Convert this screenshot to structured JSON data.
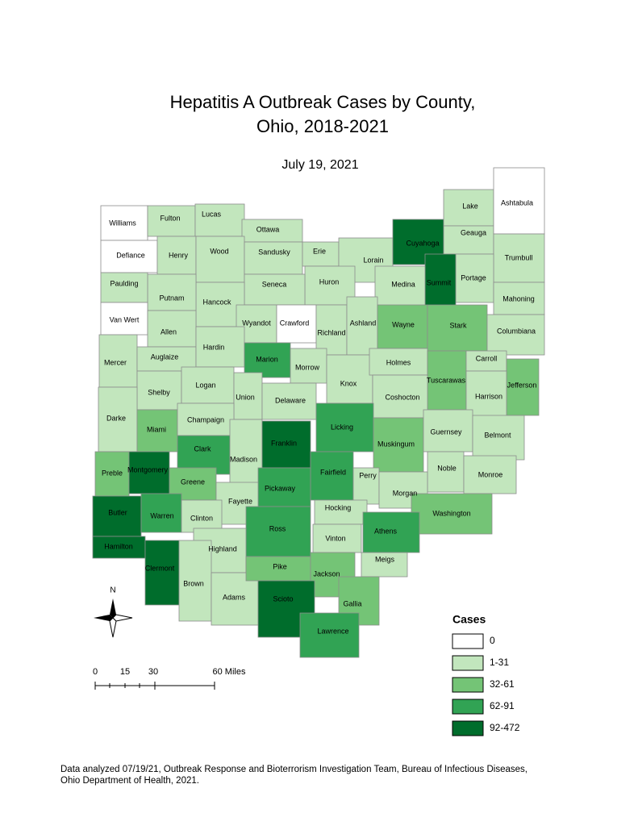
{
  "title": [
    "Hepatitis A Outbreak Cases by County,",
    "Ohio, 2018-2021"
  ],
  "subtitle": "July 19, 2021",
  "counties": [
    {
      "name": "Williams",
      "cases": "0"
    },
    {
      "name": "Fulton",
      "cases": "1-31"
    },
    {
      "name": "Lucas",
      "cases": "1-31"
    },
    {
      "name": "Ottawa",
      "cases": "1-31"
    },
    {
      "name": "Defiance",
      "cases": "0"
    },
    {
      "name": "Henry",
      "cases": "1-31"
    },
    {
      "name": "Wood",
      "cases": "1-31"
    },
    {
      "name": "Sandusky",
      "cases": "1-31"
    },
    {
      "name": "Erie",
      "cases": "1-31"
    },
    {
      "name": "Lorain",
      "cases": "1-31"
    },
    {
      "name": "Cuyahoga",
      "cases": "92-472"
    },
    {
      "name": "Lake",
      "cases": "1-31"
    },
    {
      "name": "Geauga",
      "cases": "1-31"
    },
    {
      "name": "Ashtabula",
      "cases": "0"
    },
    {
      "name": "Trumbull",
      "cases": "1-31"
    },
    {
      "name": "Portage",
      "cases": "1-31"
    },
    {
      "name": "Summit",
      "cases": "92-472"
    },
    {
      "name": "Medina",
      "cases": "1-31"
    },
    {
      "name": "Huron",
      "cases": "1-31"
    },
    {
      "name": "Seneca",
      "cases": "1-31"
    },
    {
      "name": "Hancock",
      "cases": "1-31"
    },
    {
      "name": "Putnam",
      "cases": "1-31"
    },
    {
      "name": "Paulding",
      "cases": "1-31"
    },
    {
      "name": "Van Wert",
      "cases": "0"
    },
    {
      "name": "Allen",
      "cases": "1-31"
    },
    {
      "name": "Wyandot",
      "cases": "1-31"
    },
    {
      "name": "Crawford",
      "cases": "0"
    },
    {
      "name": "Richland",
      "cases": "1-31"
    },
    {
      "name": "Ashland",
      "cases": "1-31"
    },
    {
      "name": "Wayne",
      "cases": "32-61"
    },
    {
      "name": "Stark",
      "cases": "32-61"
    },
    {
      "name": "Mahoning",
      "cases": "1-31"
    },
    {
      "name": "Columbiana",
      "cases": "1-31"
    },
    {
      "name": "Mercer",
      "cases": "1-31"
    },
    {
      "name": "Auglaize",
      "cases": "1-31"
    },
    {
      "name": "Hardin",
      "cases": "1-31"
    },
    {
      "name": "Marion",
      "cases": "62-91"
    },
    {
      "name": "Morrow",
      "cases": "1-31"
    },
    {
      "name": "Knox",
      "cases": "1-31"
    },
    {
      "name": "Holmes",
      "cases": "1-31"
    },
    {
      "name": "Tuscarawas",
      "cases": "32-61"
    },
    {
      "name": "Carroll",
      "cases": "1-31"
    },
    {
      "name": "Jefferson",
      "cases": "32-61"
    },
    {
      "name": "Harrison",
      "cases": "1-31"
    },
    {
      "name": "Coshocton",
      "cases": "1-31"
    },
    {
      "name": "Shelby",
      "cases": "1-31"
    },
    {
      "name": "Logan",
      "cases": "1-31"
    },
    {
      "name": "Union",
      "cases": "1-31"
    },
    {
      "name": "Delaware",
      "cases": "1-31"
    },
    {
      "name": "Darke",
      "cases": "1-31"
    },
    {
      "name": "Miami",
      "cases": "32-61"
    },
    {
      "name": "Champaign",
      "cases": "1-31"
    },
    {
      "name": "Clark",
      "cases": "62-91"
    },
    {
      "name": "Madison",
      "cases": "1-31"
    },
    {
      "name": "Franklin",
      "cases": "92-472"
    },
    {
      "name": "Licking",
      "cases": "62-91"
    },
    {
      "name": "Muskingum",
      "cases": "32-61"
    },
    {
      "name": "Guernsey",
      "cases": "1-31"
    },
    {
      "name": "Belmont",
      "cases": "1-31"
    },
    {
      "name": "Preble",
      "cases": "32-61"
    },
    {
      "name": "Montgomery",
      "cases": "92-472"
    },
    {
      "name": "Greene",
      "cases": "32-61"
    },
    {
      "name": "Fairfield",
      "cases": "62-91"
    },
    {
      "name": "Perry",
      "cases": "1-31"
    },
    {
      "name": "Noble",
      "cases": "1-31"
    },
    {
      "name": "Monroe",
      "cases": "1-31"
    },
    {
      "name": "Pickaway",
      "cases": "62-91"
    },
    {
      "name": "Fayette",
      "cases": "1-31"
    },
    {
      "name": "Morgan",
      "cases": "1-31"
    },
    {
      "name": "Washington",
      "cases": "32-61"
    },
    {
      "name": "Butler",
      "cases": "92-472"
    },
    {
      "name": "Warren",
      "cases": "62-91"
    },
    {
      "name": "Clinton",
      "cases": "1-31"
    },
    {
      "name": "Hocking",
      "cases": "1-31"
    },
    {
      "name": "Athens",
      "cases": "62-91"
    },
    {
      "name": "Ross",
      "cases": "62-91"
    },
    {
      "name": "Vinton",
      "cases": "1-31"
    },
    {
      "name": "Highland",
      "cases": "1-31"
    },
    {
      "name": "Hamilton",
      "cases": "92-472"
    },
    {
      "name": "Clermont",
      "cases": "92-472"
    },
    {
      "name": "Meigs",
      "cases": "1-31"
    },
    {
      "name": "Brown",
      "cases": "1-31"
    },
    {
      "name": "Adams",
      "cases": "1-31"
    },
    {
      "name": "Pike",
      "cases": "32-61"
    },
    {
      "name": "Jackson",
      "cases": "32-61"
    },
    {
      "name": "Scioto",
      "cases": "92-472"
    },
    {
      "name": "Gallia",
      "cases": "32-61"
    },
    {
      "name": "Lawrence",
      "cases": "62-91"
    }
  ],
  "legend": {
    "title": "Cases",
    "items": [
      {
        "label": "0",
        "color": "#ffffff"
      },
      {
        "label": "1-31",
        "color": "#c2e6bd"
      },
      {
        "label": "32-61",
        "color": "#74c476"
      },
      {
        "label": "62-91",
        "color": "#31a354"
      },
      {
        "label": "92-472",
        "color": "#006d2c"
      }
    ]
  },
  "north": "N",
  "scale_bar": [
    "0",
    "15",
    "30",
    "60 Miles"
  ],
  "source": [
    "Data analyzed 07/19/21, Outbreak Response and Bioterrorism Investigation Team, Bureau of Infectious Diseases,",
    "Ohio Department of Health, 2021."
  ]
}
